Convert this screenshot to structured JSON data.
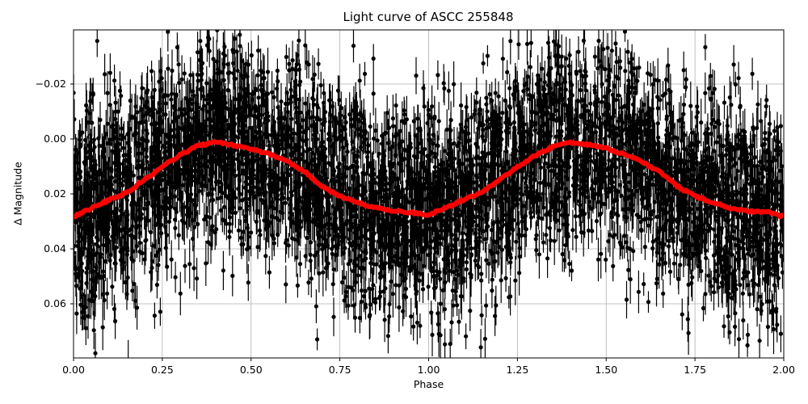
{
  "chart_data": {
    "type": "scatter",
    "title": "Light curve of ASCC 255848",
    "xlabel": "Phase",
    "ylabel": "Δ Magnitude",
    "xlim": [
      0.0,
      2.0
    ],
    "ylim": [
      0.0795,
      -0.0397
    ],
    "y_inverted": true,
    "grid": true,
    "legend": null,
    "xticks": [
      0.0,
      0.25,
      0.5,
      0.75,
      1.0,
      1.25,
      1.5,
      1.75,
      2.0
    ],
    "xtick_labels": [
      "0.00",
      "0.25",
      "0.50",
      "0.75",
      "1.00",
      "1.25",
      "1.50",
      "1.75",
      "2.00"
    ],
    "yticks": [
      -0.02,
      0.0,
      0.02,
      0.04,
      0.06
    ],
    "ytick_labels": [
      "−0.02",
      "0.00",
      "0.02",
      "0.04",
      "0.06"
    ],
    "series": [
      {
        "name": "observations",
        "kind": "errorbar-scatter",
        "color": "#000000",
        "marker": "circle",
        "description": "dense cloud of individual measurements with vertical error bars, spread approximately ±0.035 mag around the binned curve, phase-folded twice (0–2)",
        "scatter_sigma": 0.018,
        "typical_error": 0.006
      },
      {
        "name": "binned",
        "kind": "line-markers",
        "color": "#ff0000",
        "x": [
          0.0,
          0.05,
          0.1,
          0.15,
          0.2,
          0.25,
          0.3,
          0.35,
          0.4,
          0.45,
          0.5,
          0.55,
          0.6,
          0.65,
          0.7,
          0.75,
          0.8,
          0.85,
          0.9,
          0.95,
          1.0,
          1.05,
          1.1,
          1.15,
          1.2,
          1.25,
          1.3,
          1.35,
          1.4,
          1.45,
          1.5,
          1.55,
          1.6,
          1.65,
          1.7,
          1.75,
          1.8,
          1.85,
          1.9,
          1.95,
          2.0
        ],
        "values": [
          0.0283,
          0.0252,
          0.0222,
          0.0195,
          0.0148,
          0.01,
          0.0058,
          0.0025,
          0.0012,
          0.0022,
          0.0036,
          0.0055,
          0.008,
          0.0118,
          0.0172,
          0.0208,
          0.0232,
          0.025,
          0.0262,
          0.0268,
          0.0275,
          0.025,
          0.022,
          0.0192,
          0.015,
          0.0102,
          0.006,
          0.0028,
          0.0013,
          0.0021,
          0.0035,
          0.0055,
          0.0082,
          0.012,
          0.0172,
          0.0208,
          0.0232,
          0.0251,
          0.0262,
          0.0265,
          0.0283
        ]
      }
    ]
  }
}
